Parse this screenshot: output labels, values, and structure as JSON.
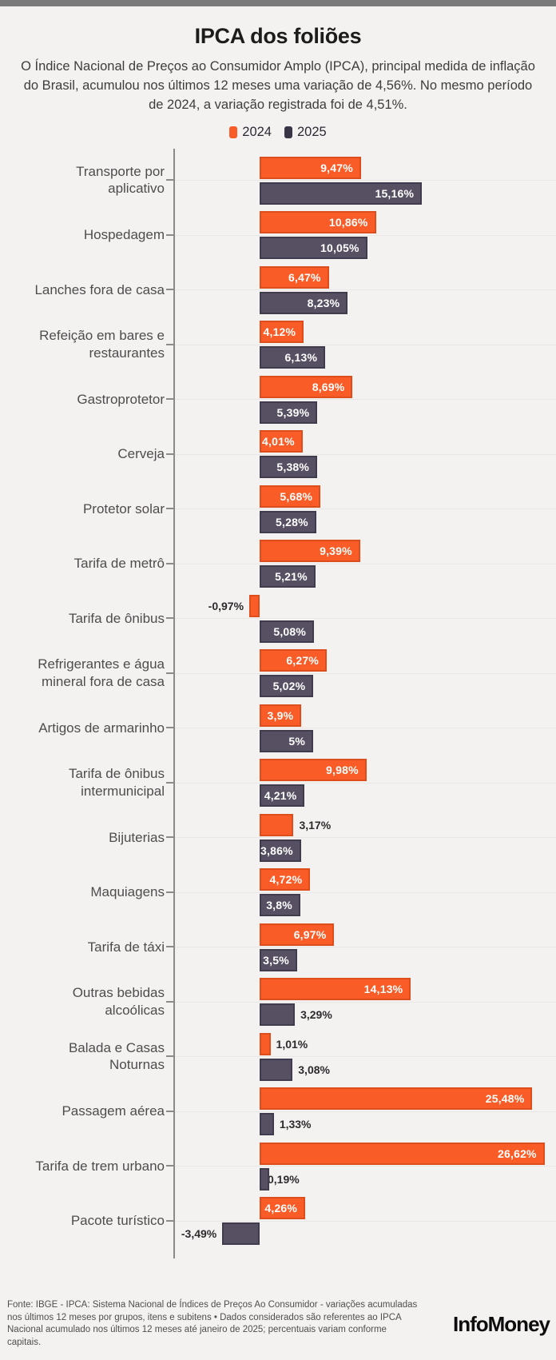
{
  "page": {
    "title": "IPCA dos foliões",
    "subtitle": "O Índice Nacional de Preços ao Consumidor Amplo (IPCA), principal medida de inflação do Brasil, acumulou nos últimos 12 meses uma variação de 4,56%. No mesmo período de 2024, a variação registrada foi de 4,51%.",
    "footer": "Fonte: IBGE - IPCA: Sistema Nacional de Índices de Preços Ao Consumidor - variações acumuladas nos últimos 12 meses por grupos, itens e subitens • Dados considerados são referentes ao IPCA Nacional acumulado nos últimos 12 meses até janeiro de 2025; percentuais variam conforme capitais.",
    "brand": "InfoMoney"
  },
  "legend": {
    "items": [
      {
        "label": "2024",
        "color": "#F95C27"
      },
      {
        "label": "2025",
        "color": "#3A3447"
      }
    ]
  },
  "colors": {
    "background": "#F4F2F1",
    "topbar": "#7A7A7A",
    "bar_2024": "#F95C27",
    "bar_2024_border": "#DE4E1D",
    "bar_2025": "#575063",
    "bar_2025_border": "#413C4D",
    "axis": "#8A8A8A",
    "gridline": "#E9E7E5",
    "value_label_inside": "#FFFFFF",
    "value_label_outside": "#2D2B2D",
    "category_label": "#4D4D4D"
  },
  "chart_data": {
    "type": "bar",
    "orientation": "horizontal",
    "unit": "%",
    "series_names": [
      "2024",
      "2025"
    ],
    "xlim": [
      -4,
      27
    ],
    "grid": "per-row faint horizontal lines",
    "legend_position": "top-center",
    "rows": [
      {
        "category": "Transporte por aplicativo",
        "lines": [
          "Transporte por",
          "aplicativo"
        ],
        "v2024": 9.47,
        "l2024": "9,47%",
        "p2024": "in",
        "v2025": 15.16,
        "l2025": "15,16%",
        "p2025": "in"
      },
      {
        "category": "Hospedagem",
        "lines": [
          "Hospedagem"
        ],
        "v2024": 10.86,
        "l2024": "10,86%",
        "p2024": "in",
        "v2025": 10.05,
        "l2025": "10,05%",
        "p2025": "in"
      },
      {
        "category": "Lanches fora de casa",
        "lines": [
          "Lanches fora de casa"
        ],
        "v2024": 6.47,
        "l2024": "6,47%",
        "p2024": "in",
        "v2025": 8.23,
        "l2025": "8,23%",
        "p2025": "in"
      },
      {
        "category": "Refeição em bares e restaurantes",
        "lines": [
          "Refeição em bares e",
          "restaurantes"
        ],
        "v2024": 4.12,
        "l2024": "4,12%",
        "p2024": "in",
        "v2025": 6.13,
        "l2025": "6,13%",
        "p2025": "in"
      },
      {
        "category": "Gastroprotetor",
        "lines": [
          "Gastroprotetor"
        ],
        "v2024": 8.69,
        "l2024": "8,69%",
        "p2024": "in",
        "v2025": 5.39,
        "l2025": "5,39%",
        "p2025": "in"
      },
      {
        "category": "Cerveja",
        "lines": [
          "Cerveja"
        ],
        "v2024": 4.01,
        "l2024": "4,01%",
        "p2024": "in",
        "v2025": 5.38,
        "l2025": "5,38%",
        "p2025": "in"
      },
      {
        "category": "Protetor solar",
        "lines": [
          "Protetor solar"
        ],
        "v2024": 5.68,
        "l2024": "5,68%",
        "p2024": "in",
        "v2025": 5.28,
        "l2025": "5,28%",
        "p2025": "in"
      },
      {
        "category": "Tarifa de metrô",
        "lines": [
          "Tarifa de metrô"
        ],
        "v2024": 9.39,
        "l2024": "9,39%",
        "p2024": "in",
        "v2025": 5.21,
        "l2025": "5,21%",
        "p2025": "in"
      },
      {
        "category": "Tarifa de ônibus",
        "lines": [
          "Tarifa de ônibus"
        ],
        "v2024": -0.97,
        "l2024": "-0,97%",
        "p2024": "out",
        "v2025": 5.08,
        "l2025": "5,08%",
        "p2025": "in"
      },
      {
        "category": "Refrigerantes e água mineral fora de casa",
        "lines": [
          "Refrigerantes e água",
          "mineral fora de casa"
        ],
        "v2024": 6.27,
        "l2024": "6,27%",
        "p2024": "in",
        "v2025": 5.02,
        "l2025": "5,02%",
        "p2025": "in"
      },
      {
        "category": "Artigos de armarinho",
        "lines": [
          "Artigos de armarinho"
        ],
        "v2024": 3.9,
        "l2024": "3,9%",
        "p2024": "in",
        "v2025": 5.0,
        "l2025": "5%",
        "p2025": "in"
      },
      {
        "category": "Tarifa de ônibus intermunicipal",
        "lines": [
          "Tarifa de ônibus",
          "intermunicipal"
        ],
        "v2024": 9.98,
        "l2024": "9,98%",
        "p2024": "in",
        "v2025": 4.21,
        "l2025": "4,21%",
        "p2025": "in"
      },
      {
        "category": "Bijuterias",
        "lines": [
          "Bijuterias"
        ],
        "v2024": 3.17,
        "l2024": "3,17%",
        "p2024": "out",
        "v2025": 3.86,
        "l2025": "3,86%",
        "p2025": "in"
      },
      {
        "category": "Maquiagens",
        "lines": [
          "Maquiagens"
        ],
        "v2024": 4.72,
        "l2024": "4,72%",
        "p2024": "in",
        "v2025": 3.8,
        "l2025": "3,8%",
        "p2025": "in"
      },
      {
        "category": "Tarifa de táxi",
        "lines": [
          "Tarifa de táxi"
        ],
        "v2024": 6.97,
        "l2024": "6,97%",
        "p2024": "in",
        "v2025": 3.5,
        "l2025": "3,5%",
        "p2025": "in"
      },
      {
        "category": "Outras bebidas alcoólicas",
        "lines": [
          "Outras bebidas",
          "alcoólicas"
        ],
        "v2024": 14.13,
        "l2024": "14,13%",
        "p2024": "in",
        "v2025": 3.29,
        "l2025": "3,29%",
        "p2025": "out"
      },
      {
        "category": "Balada e Casas Noturnas",
        "lines": [
          "Balada e Casas",
          "Noturnas"
        ],
        "v2024": 1.01,
        "l2024": "1,01%",
        "p2024": "out",
        "v2025": 3.08,
        "l2025": "3,08%",
        "p2025": "out"
      },
      {
        "category": "Passagem aérea",
        "lines": [
          "Passagem aérea"
        ],
        "v2024": 25.48,
        "l2024": "25,48%",
        "p2024": "in",
        "v2025": 1.33,
        "l2025": "1,33%",
        "p2025": "out"
      },
      {
        "category": "Tarifa de trem urbano",
        "lines": [
          "Tarifa de trem urbano"
        ],
        "v2024": 26.62,
        "l2024": "26,62%",
        "p2024": "in",
        "v2025": 0.19,
        "l2025": "0,19%",
        "p2025": "out"
      },
      {
        "category": "Pacote turístico",
        "lines": [
          "Pacote turístico"
        ],
        "v2024": 4.26,
        "l2024": "4,26%",
        "p2024": "in",
        "v2025": -3.49,
        "l2025": "-3,49%",
        "p2025": "out"
      }
    ]
  }
}
